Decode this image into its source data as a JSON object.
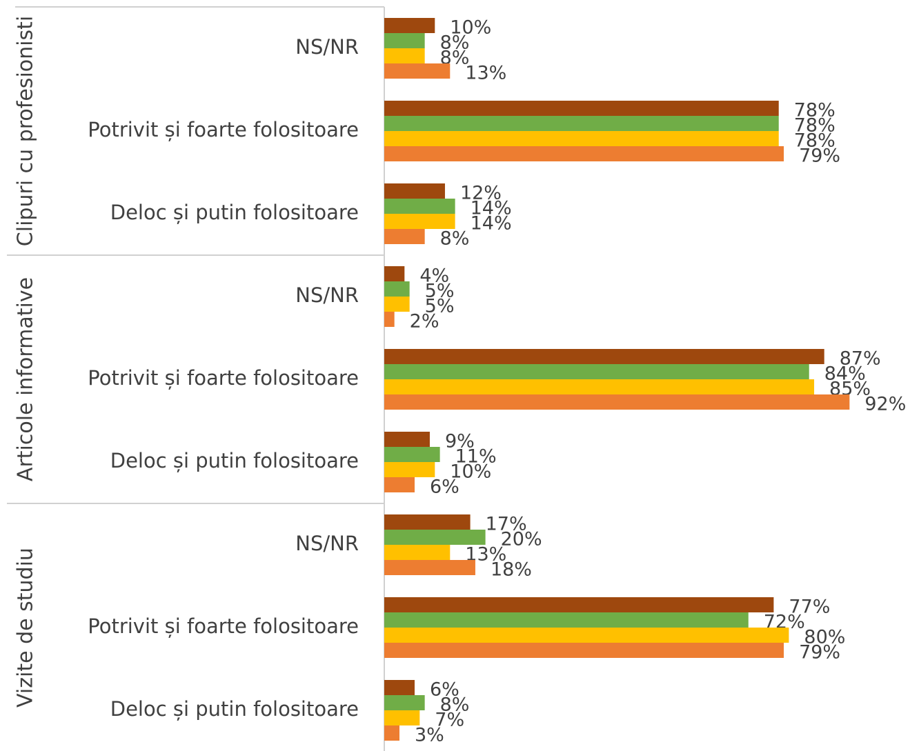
{
  "chart_data": {
    "type": "bar",
    "orientation": "horizontal",
    "groups": [
      "Clipuri cu profesionisti",
      "Articole informative",
      "Vizite de studiu"
    ],
    "categories": [
      "NS/NR",
      "Potrivit și foarte folositoare",
      "Deloc și putin folositoare",
      "NS/NR",
      "Potrivit și foarte folositoare",
      "Deloc și putin folositoare",
      "NS/NR",
      "Potrivit și foarte folositoare",
      "Deloc și putin folositoare"
    ],
    "xlim": [
      0,
      100
    ],
    "series": [
      {
        "color": "#9e480e",
        "values": [
          10,
          78,
          12,
          4,
          87,
          9,
          17,
          77,
          6
        ],
        "value_labels": [
          "10%",
          "78%",
          "12%",
          "4%",
          "87%",
          "9%",
          "17%",
          "77%",
          "6%"
        ]
      },
      {
        "color": "#70ad47",
        "values": [
          8,
          78,
          14,
          5,
          84,
          11,
          20,
          72,
          8
        ],
        "value_labels": [
          "8%",
          "78%",
          "14%",
          "5%",
          "84%",
          "11%",
          "20%",
          "72%",
          "8%"
        ]
      },
      {
        "color": "#ffc000",
        "values": [
          8,
          78,
          14,
          5,
          85,
          10,
          13,
          80,
          7
        ],
        "value_labels": [
          "8%",
          "78%",
          "14%",
          "5%",
          "85%",
          "10%",
          "13%",
          "80%",
          "7%"
        ]
      },
      {
        "color": "#ed7d31",
        "values": [
          13,
          79,
          8,
          2,
          92,
          6,
          18,
          79,
          3
        ],
        "value_labels": [
          "13%",
          "79%",
          "8%",
          "2%",
          "92%",
          "6%",
          "18%",
          "79%",
          "3%"
        ]
      }
    ]
  }
}
